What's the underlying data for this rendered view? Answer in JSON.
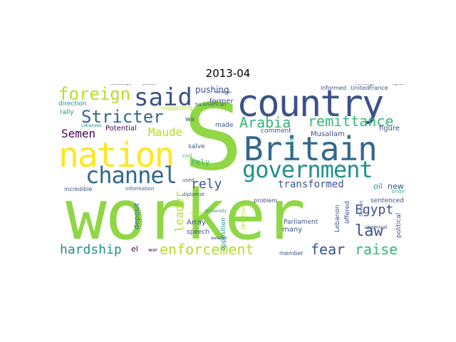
{
  "title": "2013-04",
  "palette": {
    "dark_purple": "#440154",
    "indigo": "#3b528b",
    "blue_slate": "#31688e",
    "teal": "#21918c",
    "green_teal": "#35b779",
    "green": "#8fd744",
    "yellow": "#fde725",
    "lime": "#b5de2b"
  },
  "words": [
    "worker",
    "S",
    "country",
    "nation",
    "Britain",
    "government",
    "channel",
    "said",
    "foreign",
    "Stricter",
    "remittance",
    "Arabia",
    "enforcement",
    "hardship",
    "raise",
    "fear",
    "law",
    "Egypt",
    "transformed",
    "leader",
    "Maude",
    "Semen",
    "rely",
    "rely",
    "pushing",
    "former",
    "made",
    "comment",
    "Musallam",
    "figure",
    "sentenced",
    "new",
    "bride",
    "oil",
    "Potential",
    "direction",
    "rally",
    "suggesting",
    "salve",
    "civil",
    "used",
    "diplomat",
    "deposit",
    "Array",
    "speech",
    "opposition",
    "gas",
    "revenue",
    "coast",
    "many",
    "Parliament",
    "Lebanon",
    "member",
    "political",
    "offered",
    "incredible",
    "information",
    "el",
    "war",
    "problem",
    "informed",
    "United",
    "France",
    "Syrian",
    "chemical",
    "University",
    "weapon",
    "American",
    "Lebanese",
    "wa",
    "ha",
    "sectarian",
    "technology",
    "signed",
    "increasingly",
    "process"
  ]
}
